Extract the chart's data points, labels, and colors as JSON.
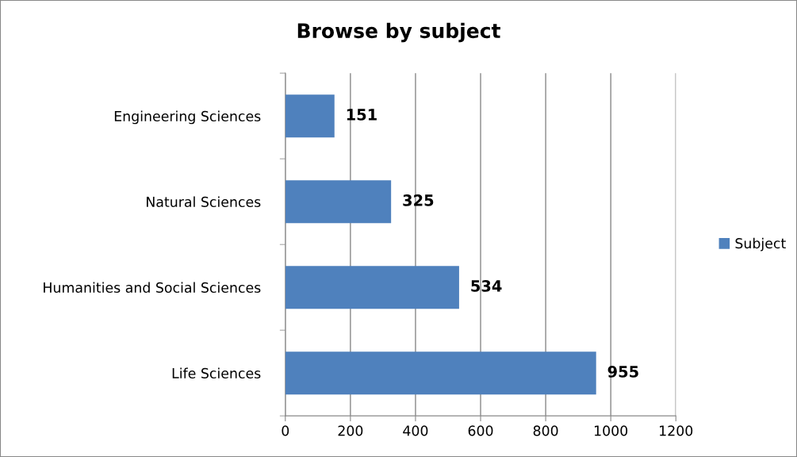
{
  "chart_data": {
    "type": "bar",
    "orientation": "horizontal",
    "title": "Browse by subject",
    "categories": [
      "Engineering Sciences",
      "Natural Sciences",
      "Humanities and Social Sciences",
      "Life Sciences"
    ],
    "series": [
      {
        "name": "Subject",
        "color": "#4f81bd",
        "values": [
          151,
          325,
          534,
          955
        ]
      }
    ],
    "xlim": [
      0,
      1200
    ],
    "xticks": [
      0,
      200,
      400,
      600,
      800,
      1000,
      1200
    ],
    "grid": "x",
    "legend": "right",
    "data_labels": true
  }
}
